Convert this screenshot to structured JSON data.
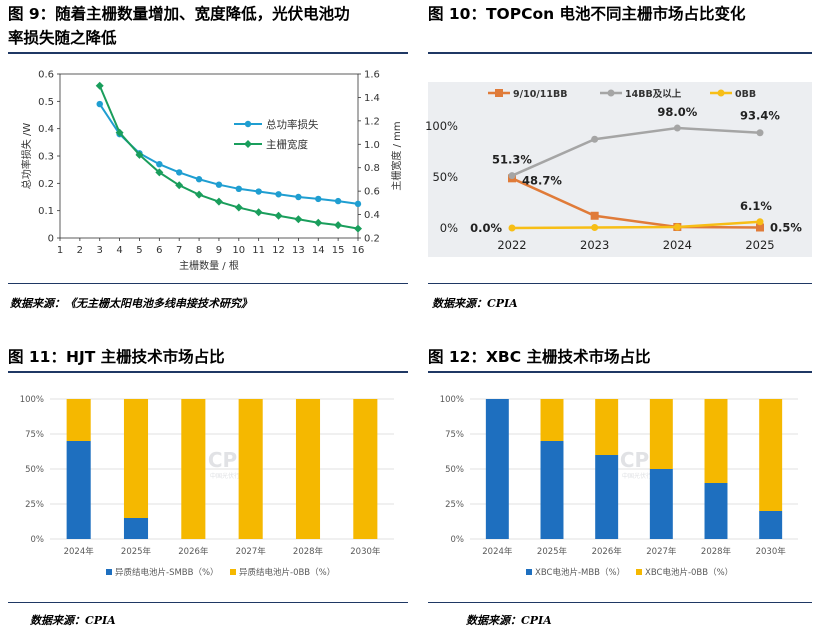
{
  "figures": {
    "fig9": {
      "title_line1": "图 9：随着主栅数量增加、宽度降低，光伏电池功",
      "title_line2": "率损失随之降低",
      "source": "数据来源：《无主栅太阳电池多线串接技术研究》"
    },
    "fig10": {
      "title": "图 10：TOPCon 电池不同主栅市场占比变化",
      "source": "数据来源：CPIA"
    },
    "fig11": {
      "title": "图 11：HJT 主栅技术市场占比",
      "source": "数据来源：CPIA"
    },
    "fig12": {
      "title": "图 12：XBC 主栅技术市场占比",
      "source": "数据来源：CPIA"
    }
  },
  "watermark": {
    "text": "CPIA",
    "subtext": "中国光伏行业协会"
  },
  "colors": {
    "blue": "#1e6fbf",
    "gold": "#f5b800",
    "teal": "#1f9ed1",
    "green": "#1a9e5c",
    "orange": "#e07b39",
    "gray": "#a5a5a5",
    "yellow": "#f7be16",
    "rule": "#1f3864"
  },
  "chart_data": [
    {
      "id": "fig9",
      "type": "line",
      "x": [
        3,
        4,
        5,
        6,
        7,
        8,
        9,
        10,
        11,
        12,
        13,
        14,
        15,
        16
      ],
      "xlabel": "主栅数量 / 根",
      "ylabel": "总功率损失 /W",
      "ylabel_right": "主栅宽度 / mm",
      "xlim": [
        1,
        16
      ],
      "ylim": [
        0,
        0.6
      ],
      "ylim_right": [
        0.2,
        1.6
      ],
      "x_ticks": [
        "1",
        "2",
        "3",
        "4",
        "5",
        "6",
        "7",
        "8",
        "9",
        "10",
        "11",
        "12",
        "13",
        "14",
        "15",
        "16"
      ],
      "y_ticks": [
        "0",
        "0.1",
        "0.2",
        "0.3",
        "0.4",
        "0.5",
        "0.6"
      ],
      "y_ticks_right": [
        "0.2",
        "0.4",
        "0.6",
        "0.8",
        "1.0",
        "1.2",
        "1.4",
        "1.6"
      ],
      "series": [
        {
          "name": "总功率损失",
          "axis": "left",
          "values": [
            0.49,
            0.38,
            0.31,
            0.27,
            0.24,
            0.215,
            0.195,
            0.18,
            0.17,
            0.16,
            0.15,
            0.143,
            0.135,
            0.125
          ]
        },
        {
          "name": "主栅宽度",
          "axis": "right",
          "values": [
            1.5,
            1.1,
            0.91,
            0.76,
            0.65,
            0.57,
            0.51,
            0.46,
            0.42,
            0.39,
            0.36,
            0.33,
            0.31,
            0.28
          ]
        }
      ]
    },
    {
      "id": "fig10",
      "type": "line",
      "categories": [
        "2022",
        "2023",
        "2024",
        "2025"
      ],
      "ylim": [
        0,
        100
      ],
      "y_ticks": [
        "0%",
        "50%",
        "100%"
      ],
      "series": [
        {
          "name": "9/10/11BB",
          "values": [
            48.7,
            12,
            1,
            0.5
          ],
          "labels": [
            "48.7%",
            "",
            "",
            "0.5%"
          ]
        },
        {
          "name": "14BB及以上",
          "values": [
            51.3,
            87,
            98.0,
            93.4
          ],
          "labels": [
            "51.3%",
            "",
            "98.0%",
            "93.4%"
          ]
        },
        {
          "name": "0BB",
          "values": [
            0.0,
            0.5,
            1,
            6.1
          ],
          "labels": [
            "0.0%",
            "",
            "",
            "6.1%"
          ]
        }
      ]
    },
    {
      "id": "fig11",
      "type": "bar",
      "categories": [
        "2024年",
        "2025年",
        "2026年",
        "2027年",
        "2028年",
        "2030年"
      ],
      "ylim": [
        0,
        100
      ],
      "y_ticks": [
        "0%",
        "25%",
        "50%",
        "75%",
        "100%"
      ],
      "series": [
        {
          "name": "异质结电池片-SMBB（%）",
          "values": [
            70,
            15,
            0,
            0,
            0,
            0
          ]
        },
        {
          "name": "异质结电池片-0BB（%）",
          "values": [
            30,
            85,
            100,
            100,
            100,
            100
          ]
        }
      ]
    },
    {
      "id": "fig12",
      "type": "bar",
      "categories": [
        "2024年",
        "2025年",
        "2026年",
        "2027年",
        "2028年",
        "2030年"
      ],
      "ylim": [
        0,
        100
      ],
      "y_ticks": [
        "0%",
        "25%",
        "50%",
        "75%",
        "100%"
      ],
      "series": [
        {
          "name": "XBC电池片-MBB（%）",
          "values": [
            100,
            70,
            60,
            50,
            40,
            20
          ]
        },
        {
          "name": "XBC电池片-0BB（%）",
          "values": [
            0,
            30,
            40,
            50,
            60,
            80
          ]
        }
      ]
    }
  ]
}
